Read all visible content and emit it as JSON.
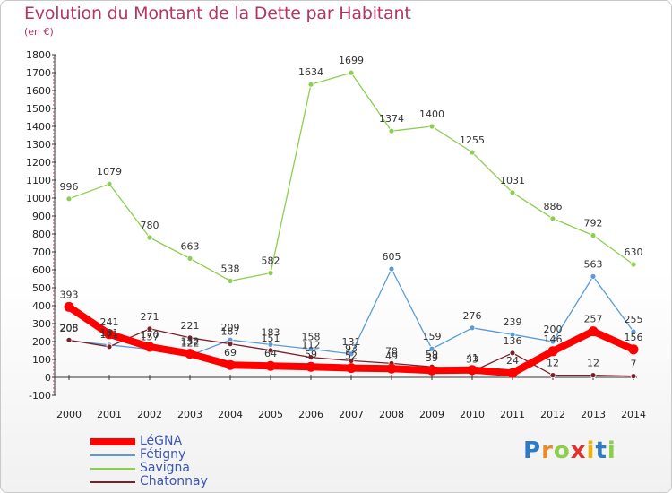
{
  "chart_data": {
    "type": "line",
    "title": "Evolution du Montant de la Dette par Habitant",
    "subtitle": "(en €)",
    "x": [
      "2000",
      "2001",
      "2002",
      "2003",
      "2004",
      "2005",
      "2006",
      "2007",
      "2008",
      "2009",
      "2010",
      "2011",
      "2012",
      "2013",
      "2014"
    ],
    "ylim": [
      -100,
      1800
    ],
    "yticks": [
      "-100",
      "0",
      "100",
      "200",
      "300",
      "400",
      "500",
      "600",
      "700",
      "800",
      "900",
      "1000",
      "1100",
      "1200",
      "1300",
      "1400",
      "1500",
      "1600",
      "1700",
      "1800"
    ],
    "grid": false,
    "legend_position": "bottom-left",
    "series": [
      {
        "name": "Savigna",
        "color": "#8ccf4d",
        "values": [
          996,
          1079,
          780,
          663,
          538,
          582,
          1634,
          1699,
          1374,
          1400,
          1255,
          1031,
          886,
          792,
          630
        ],
        "labels": [
          "996",
          "1079",
          "780",
          "663",
          "538",
          "582",
          "1634",
          "1699",
          "1374",
          "1400",
          "1255",
          "1031",
          "886",
          "792",
          "630"
        ]
      },
      {
        "name": "Fétigny",
        "color": "#5a9bd5",
        "values": [
          205,
          181,
          157,
          122,
          209,
          183,
          158,
          131,
          605,
          159,
          276,
          239,
          200,
          563,
          255
        ],
        "labels": [
          "205",
          "181",
          "157",
          "122",
          "209",
          "183",
          "158",
          "131",
          "605",
          "159",
          "276",
          "239",
          "200",
          "563",
          "255"
        ]
      },
      {
        "name": "Chatonnay",
        "color": "#7b1f2a",
        "values": [
          208,
          171,
          271,
          221,
          187,
          151,
          112,
          93,
          78,
          59,
          33,
          136,
          12,
          12,
          7
        ],
        "labels": [
          "208",
          "171",
          "271",
          "221",
          "187",
          "151",
          "112",
          "93",
          "78",
          "59",
          "33",
          "136",
          "12",
          "12",
          "7"
        ]
      },
      {
        "name": "LéGNA",
        "color": "#ff0000",
        "values": [
          393,
          241,
          170,
          132,
          69,
          64,
          59,
          52,
          49,
          39,
          41,
          24,
          146,
          257,
          156
        ],
        "labels": [
          "393",
          "241",
          "170",
          "132",
          "69",
          "64",
          "59",
          "52",
          "49",
          "39",
          "41",
          "24",
          "146",
          "257",
          "156"
        ]
      }
    ]
  },
  "legend": [
    {
      "name": "LéGNA",
      "color": "#ff0000"
    },
    {
      "name": "Fétigny",
      "color": "#5a9bd5"
    },
    {
      "name": "Savigna",
      "color": "#8ccf4d"
    },
    {
      "name": "Chatonnay",
      "color": "#7b1f2a"
    }
  ],
  "brand": {
    "letters": [
      "P",
      "r",
      "o",
      "x",
      "i",
      "t",
      "i"
    ],
    "colors": [
      "#2e7bc4",
      "#e98a2c",
      "#8ccf4d",
      "#e0332d",
      "#f2b400",
      "#2e7bc4",
      "#8ccf4d"
    ]
  }
}
